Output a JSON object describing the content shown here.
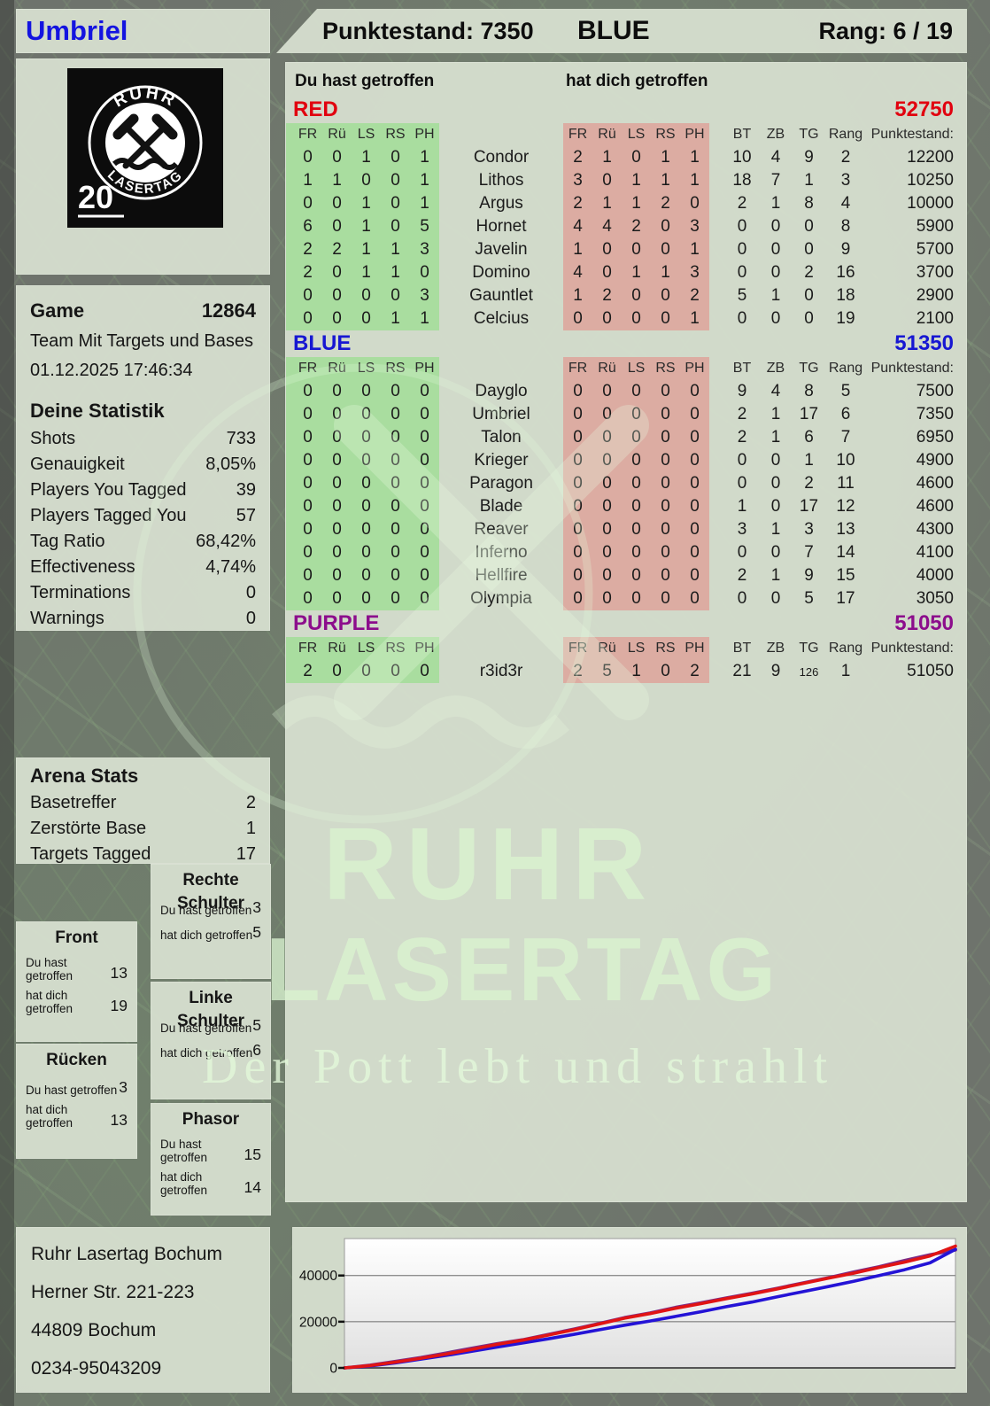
{
  "header": {
    "player": "Umbriel",
    "score_label": "Punktestand: 7350",
    "team": "BLUE",
    "rank_label": "Rang: 6 / 19"
  },
  "logo": {
    "arc_top": "RUHR",
    "arc_bottom": "LASERTAG",
    "badge": "20"
  },
  "game": {
    "label": "Game",
    "number": "12864",
    "mode": "Team Mit Targets und Bases",
    "datetime": "01.12.2025 17:46:34"
  },
  "stats": {
    "title": "Deine Statistik",
    "rows": [
      {
        "label": "Shots",
        "value": "733"
      },
      {
        "label": "Genauigkeit",
        "value": "8,05%"
      },
      {
        "label": "Players You Tagged",
        "value": "39"
      },
      {
        "label": "Players Tagged You",
        "value": "57"
      },
      {
        "label": "Tag Ratio",
        "value": "68,42%"
      },
      {
        "label": "Effectiveness",
        "value": "4,74%"
      },
      {
        "label": "Terminations",
        "value": "0"
      },
      {
        "label": "Warnings",
        "value": "0"
      }
    ]
  },
  "arena": {
    "title": "Arena Stats",
    "rows": [
      {
        "label": "Basetreffer",
        "value": "2"
      },
      {
        "label": "Zerstörte Base",
        "value": "1"
      },
      {
        "label": "Targets Tagged",
        "value": "17"
      }
    ]
  },
  "hit_zones": {
    "you_label": "Du hast getroffen",
    "them_label": "hat dich getroffen",
    "boxes": [
      {
        "title": "Front",
        "you": "13",
        "them": "19"
      },
      {
        "title": "Rücken",
        "you": "3",
        "them": "13"
      },
      {
        "title": "Rechte Schulter",
        "you": "3",
        "them": "5"
      },
      {
        "title": "Linke Schulter",
        "you": "5",
        "them": "6"
      },
      {
        "title": "Phasor",
        "you": "15",
        "them": "14"
      }
    ]
  },
  "address": {
    "lines": [
      "Ruhr Lasertag Bochum",
      "Herner Str. 221-223",
      "44809 Bochum",
      "0234-95043209"
    ]
  },
  "watermark": {
    "line1": "RUHR",
    "line2": "LASERTAG",
    "tagline": "Der Pott lebt und strahlt"
  },
  "scoreboard": {
    "you_header": "Du hast getroffen",
    "them_header": "hat dich getroffen",
    "hit_cols": [
      "FR",
      "Rü",
      "LS",
      "RS",
      "PH"
    ],
    "stat_cols": [
      "BT",
      "ZB",
      "TG",
      "Rang",
      "Punktestand:"
    ],
    "teams": [
      {
        "name": "RED",
        "color": "#e1000f",
        "total": "52750",
        "players": [
          {
            "name": "Condor",
            "you": [
              0,
              0,
              1,
              0,
              1
            ],
            "them": [
              2,
              1,
              0,
              1,
              1
            ],
            "bt": 10,
            "zb": 4,
            "tg": 9,
            "rang": 2,
            "punkte": "12200"
          },
          {
            "name": "Lithos",
            "you": [
              1,
              1,
              0,
              0,
              1
            ],
            "them": [
              3,
              0,
              1,
              1,
              1
            ],
            "bt": 18,
            "zb": 7,
            "tg": 1,
            "rang": 3,
            "punkte": "10250"
          },
          {
            "name": "Argus",
            "you": [
              0,
              0,
              1,
              0,
              1
            ],
            "them": [
              2,
              1,
              1,
              2,
              0
            ],
            "bt": 2,
            "zb": 1,
            "tg": 8,
            "rang": 4,
            "punkte": "10000"
          },
          {
            "name": "Hornet",
            "you": [
              6,
              0,
              1,
              0,
              5
            ],
            "them": [
              4,
              4,
              2,
              0,
              3
            ],
            "bt": 0,
            "zb": 0,
            "tg": 0,
            "rang": 8,
            "punkte": "5900"
          },
          {
            "name": "Javelin",
            "you": [
              2,
              2,
              1,
              1,
              3
            ],
            "them": [
              1,
              0,
              0,
              0,
              1
            ],
            "bt": 0,
            "zb": 0,
            "tg": 0,
            "rang": 9,
            "punkte": "5700"
          },
          {
            "name": "Domino",
            "you": [
              2,
              0,
              1,
              1,
              0
            ],
            "them": [
              4,
              0,
              1,
              1,
              3
            ],
            "bt": 0,
            "zb": 0,
            "tg": 2,
            "rang": 16,
            "punkte": "3700"
          },
          {
            "name": "Gauntlet",
            "you": [
              0,
              0,
              0,
              0,
              3
            ],
            "them": [
              1,
              2,
              0,
              0,
              2
            ],
            "bt": 5,
            "zb": 1,
            "tg": 0,
            "rang": 18,
            "punkte": "2900"
          },
          {
            "name": "Celcius",
            "you": [
              0,
              0,
              0,
              1,
              1
            ],
            "them": [
              0,
              0,
              0,
              0,
              1
            ],
            "bt": 0,
            "zb": 0,
            "tg": 0,
            "rang": 19,
            "punkte": "2100"
          }
        ]
      },
      {
        "name": "BLUE",
        "color": "#1717d2",
        "total": "51350",
        "players": [
          {
            "name": "Dayglo",
            "you": [
              0,
              0,
              0,
              0,
              0
            ],
            "them": [
              0,
              0,
              0,
              0,
              0
            ],
            "bt": 9,
            "zb": 4,
            "tg": 8,
            "rang": 5,
            "punkte": "7500"
          },
          {
            "name": "Umbriel",
            "you": [
              0,
              0,
              0,
              0,
              0
            ],
            "them": [
              0,
              0,
              0,
              0,
              0
            ],
            "bt": 2,
            "zb": 1,
            "tg": 17,
            "rang": 6,
            "punkte": "7350"
          },
          {
            "name": "Talon",
            "you": [
              0,
              0,
              0,
              0,
              0
            ],
            "them": [
              0,
              0,
              0,
              0,
              0
            ],
            "bt": 2,
            "zb": 1,
            "tg": 6,
            "rang": 7,
            "punkte": "6950"
          },
          {
            "name": "Krieger",
            "you": [
              0,
              0,
              0,
              0,
              0
            ],
            "them": [
              0,
              0,
              0,
              0,
              0
            ],
            "bt": 0,
            "zb": 0,
            "tg": 1,
            "rang": 10,
            "punkte": "4900"
          },
          {
            "name": "Paragon",
            "you": [
              0,
              0,
              0,
              0,
              0
            ],
            "them": [
              0,
              0,
              0,
              0,
              0
            ],
            "bt": 0,
            "zb": 0,
            "tg": 2,
            "rang": 11,
            "punkte": "4600"
          },
          {
            "name": "Blade",
            "you": [
              0,
              0,
              0,
              0,
              0
            ],
            "them": [
              0,
              0,
              0,
              0,
              0
            ],
            "bt": 1,
            "zb": 0,
            "tg": 17,
            "rang": 12,
            "punkte": "4600"
          },
          {
            "name": "Reaver",
            "you": [
              0,
              0,
              0,
              0,
              0
            ],
            "them": [
              0,
              0,
              0,
              0,
              0
            ],
            "bt": 3,
            "zb": 1,
            "tg": 3,
            "rang": 13,
            "punkte": "4300"
          },
          {
            "name": "Inferno",
            "you": [
              0,
              0,
              0,
              0,
              0
            ],
            "them": [
              0,
              0,
              0,
              0,
              0
            ],
            "bt": 0,
            "zb": 0,
            "tg": 7,
            "rang": 14,
            "punkte": "4100"
          },
          {
            "name": "Hellfire",
            "you": [
              0,
              0,
              0,
              0,
              0
            ],
            "them": [
              0,
              0,
              0,
              0,
              0
            ],
            "bt": 2,
            "zb": 1,
            "tg": 9,
            "rang": 15,
            "punkte": "4000"
          },
          {
            "name": "Olympia",
            "you": [
              0,
              0,
              0,
              0,
              0
            ],
            "them": [
              0,
              0,
              0,
              0,
              0
            ],
            "bt": 0,
            "zb": 0,
            "tg": 5,
            "rang": 17,
            "punkte": "3050"
          }
        ]
      },
      {
        "name": "PURPLE",
        "color": "#8c0d8c",
        "total": "51050",
        "players": [
          {
            "name": "r3id3r",
            "you": [
              2,
              0,
              0,
              0,
              0
            ],
            "them": [
              2,
              5,
              1,
              0,
              2
            ],
            "bt": 21,
            "zb": 9,
            "tg": 126,
            "rang": 1,
            "punkte": "51050"
          }
        ]
      }
    ]
  },
  "chart_data": {
    "type": "line",
    "x": [
      0,
      1,
      2,
      3,
      4,
      5,
      6,
      7,
      8,
      9,
      10,
      11,
      12,
      13,
      14,
      15,
      16,
      17,
      18,
      19,
      20,
      21,
      22,
      23,
      24
    ],
    "series": [
      {
        "name": "RED",
        "color": "#e11414",
        "values": [
          0,
          1000,
          2500,
          4200,
          6000,
          8000,
          10200,
          12000,
          14200,
          16500,
          19000,
          21500,
          23500,
          25800,
          27800,
          30000,
          32000,
          34200,
          36500,
          38800,
          41000,
          43500,
          45800,
          48500,
          52750
        ]
      },
      {
        "name": "BLUE",
        "color": "#2413d6",
        "values": [
          0,
          800,
          2200,
          3800,
          5400,
          7200,
          9000,
          10800,
          12600,
          14500,
          16500,
          18500,
          20300,
          22300,
          24300,
          26500,
          28500,
          30800,
          33000,
          35200,
          37500,
          40000,
          42500,
          45500,
          51350
        ]
      },
      {
        "name": "PURPLE",
        "color": "#7c2b86",
        "values": [
          0,
          1200,
          2800,
          4500,
          6500,
          8500,
          10500,
          12200,
          14500,
          16800,
          19200,
          21800,
          23800,
          26200,
          28200,
          30300,
          32300,
          34500,
          36800,
          39000,
          41500,
          43800,
          46500,
          49000,
          51050
        ]
      }
    ],
    "ylim": [
      0,
      56000
    ],
    "yticks": [
      0,
      20000,
      40000
    ],
    "xlabel": "",
    "ylabel": "",
    "title": "",
    "grid": true,
    "legend_position": "none"
  }
}
